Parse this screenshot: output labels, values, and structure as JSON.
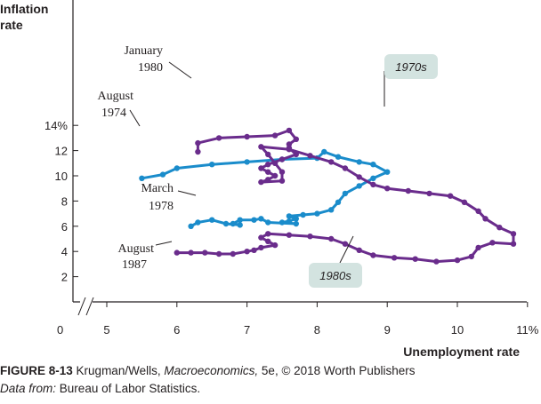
{
  "chart_data": {
    "type": "line",
    "title": "",
    "xlabel": "Unemployment rate",
    "ylabel_line1": "Inflation",
    "ylabel_line2": "rate",
    "xlim": [
      5,
      11
    ],
    "ylim": [
      0,
      14
    ],
    "x_ticks": [
      {
        "value": 5,
        "label": "5"
      },
      {
        "value": 6,
        "label": "6"
      },
      {
        "value": 7,
        "label": "7"
      },
      {
        "value": 8,
        "label": "8"
      },
      {
        "value": 9,
        "label": "9"
      },
      {
        "value": 10,
        "label": "10"
      },
      {
        "value": 11,
        "label": "11%"
      }
    ],
    "origin_label": "0",
    "y_ticks": [
      {
        "value": 2,
        "label": "2"
      },
      {
        "value": 4,
        "label": "4"
      },
      {
        "value": 6,
        "label": "6"
      },
      {
        "value": 8,
        "label": "8"
      },
      {
        "value": 10,
        "label": "10"
      },
      {
        "value": 12,
        "label": "12"
      },
      {
        "value": 14,
        "label": "14%"
      }
    ],
    "axis_break": true,
    "grid": false,
    "colors": {
      "series_1970s": "#1a8ccb",
      "series_1980s": "#6a2c8c",
      "callout_fill": "#d3e3e0",
      "text": "#231f20"
    },
    "series": [
      {
        "name": "1970s",
        "points": [
          [
            5.5,
            9.8
          ],
          [
            5.8,
            10.1
          ],
          [
            6.0,
            10.6
          ],
          [
            6.5,
            10.9
          ],
          [
            7.0,
            11.1
          ],
          [
            7.5,
            11.3
          ],
          [
            8.0,
            11.4
          ],
          [
            8.1,
            11.9
          ],
          [
            8.3,
            11.5
          ],
          [
            8.6,
            11.1
          ],
          [
            8.8,
            10.9
          ],
          [
            9.0,
            10.3
          ],
          [
            8.8,
            9.8
          ],
          [
            8.6,
            9.2
          ],
          [
            8.4,
            8.6
          ],
          [
            8.3,
            7.9
          ],
          [
            8.2,
            7.3
          ],
          [
            8.0,
            7.0
          ],
          [
            7.8,
            6.9
          ],
          [
            7.6,
            6.8
          ],
          [
            7.7,
            6.6
          ],
          [
            7.6,
            6.4
          ],
          [
            7.5,
            6.3
          ],
          [
            7.7,
            6.2
          ],
          [
            7.3,
            6.3
          ],
          [
            7.2,
            6.6
          ],
          [
            7.1,
            6.5
          ],
          [
            6.9,
            6.5
          ],
          [
            6.8,
            6.2
          ],
          [
            6.9,
            6.1
          ],
          [
            6.7,
            6.2
          ],
          [
            6.5,
            6.5
          ],
          [
            6.3,
            6.3
          ],
          [
            6.2,
            6.0
          ]
        ]
      },
      {
        "name": "1980s",
        "points": [
          [
            6.3,
            11.9
          ],
          [
            6.3,
            12.6
          ],
          [
            6.6,
            13.0
          ],
          [
            7.0,
            13.1
          ],
          [
            7.4,
            13.2
          ],
          [
            7.6,
            13.6
          ],
          [
            7.7,
            12.9
          ],
          [
            7.6,
            12.5
          ],
          [
            7.6,
            12.2
          ],
          [
            7.7,
            11.7
          ],
          [
            7.5,
            11.3
          ],
          [
            7.3,
            10.9
          ],
          [
            7.2,
            10.6
          ],
          [
            7.3,
            10.3
          ],
          [
            7.4,
            10.0
          ],
          [
            7.3,
            9.7
          ],
          [
            7.2,
            9.5
          ],
          [
            7.5,
            9.6
          ],
          [
            7.5,
            10.3
          ],
          [
            7.4,
            11.0
          ],
          [
            7.3,
            11.7
          ],
          [
            7.2,
            12.3
          ],
          [
            7.6,
            12.1
          ],
          [
            7.9,
            11.6
          ],
          [
            8.2,
            11.1
          ],
          [
            8.4,
            10.6
          ],
          [
            8.6,
            9.9
          ],
          [
            8.8,
            9.3
          ],
          [
            9.0,
            9.0
          ],
          [
            9.3,
            8.8
          ],
          [
            9.6,
            8.6
          ],
          [
            9.9,
            8.4
          ],
          [
            10.1,
            7.9
          ],
          [
            10.3,
            7.2
          ],
          [
            10.4,
            6.6
          ],
          [
            10.6,
            5.9
          ],
          [
            10.8,
            5.4
          ],
          [
            10.8,
            4.6
          ],
          [
            10.5,
            4.7
          ],
          [
            10.3,
            4.3
          ],
          [
            10.2,
            3.6
          ],
          [
            10.0,
            3.3
          ],
          [
            9.7,
            3.2
          ],
          [
            9.4,
            3.4
          ],
          [
            9.1,
            3.5
          ],
          [
            8.8,
            3.7
          ],
          [
            8.6,
            4.1
          ],
          [
            8.4,
            4.6
          ],
          [
            8.2,
            5.0
          ],
          [
            7.9,
            5.2
          ],
          [
            7.6,
            5.3
          ],
          [
            7.3,
            5.4
          ],
          [
            7.2,
            5.1
          ],
          [
            7.3,
            4.8
          ],
          [
            7.4,
            4.5
          ],
          [
            7.2,
            4.3
          ],
          [
            7.1,
            4.1
          ],
          [
            7.0,
            4.0
          ],
          [
            6.8,
            3.8
          ],
          [
            6.6,
            3.8
          ],
          [
            6.4,
            3.9
          ],
          [
            6.2,
            3.9
          ],
          [
            6.0,
            3.9
          ]
        ]
      }
    ],
    "annotations": [
      {
        "lines": [
          "January",
          "1980"
        ]
      },
      {
        "lines": [
          "August",
          "1974"
        ]
      },
      {
        "lines": [
          "March",
          "1978"
        ]
      },
      {
        "lines": [
          "August",
          "1987"
        ]
      }
    ],
    "callouts": [
      {
        "text": "1970s"
      },
      {
        "text": "1980s"
      }
    ]
  },
  "caption": {
    "figure_label": "FIGURE 8-13",
    "authors": "Krugman/Wells,",
    "book_title": "Macroeconomics,",
    "rest": "5e, © 2018 Worth Publishers",
    "source_label": "Data from:",
    "source": "Bureau of Labor Statistics."
  }
}
